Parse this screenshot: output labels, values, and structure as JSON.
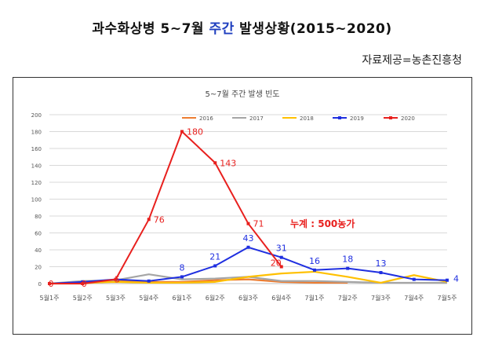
{
  "header": {
    "title_part1": "과수화상병  5~7월 ",
    "title_highlight": "주간",
    "title_part2": " 발생상황(2015~2020)",
    "source": "자료제공=농촌진흥청"
  },
  "chart_data": {
    "type": "line",
    "title": "5~7월 주간 발생 빈도",
    "categories": [
      "5월1주",
      "5월2주",
      "5월3주",
      "5월4주",
      "6월1주",
      "6월2주",
      "6월3주",
      "6월4주",
      "7월1주",
      "7월2주",
      "7월3주",
      "7월4주",
      "7월5주"
    ],
    "ylim": [
      0,
      200
    ],
    "yticks": [
      0,
      20,
      40,
      60,
      80,
      100,
      120,
      140,
      160,
      180,
      200
    ],
    "grid": true,
    "legend_position": "top",
    "series": [
      {
        "name": "2016",
        "color": "#ed7d31",
        "values": [
          0,
          0,
          3,
          2,
          2,
          4,
          5,
          2,
          1,
          1,
          null,
          null,
          null
        ]
      },
      {
        "name": "2017",
        "color": "#a5a5a5",
        "values": [
          0,
          3,
          4,
          11,
          5,
          6,
          8,
          3,
          3,
          2,
          1,
          1,
          1
        ]
      },
      {
        "name": "2018",
        "color": "#ffc000",
        "values": [
          0,
          1,
          2,
          1,
          1,
          2,
          8,
          12,
          14,
          8,
          1,
          10,
          2
        ]
      },
      {
        "name": "2019",
        "color": "#1f2fe0",
        "values": [
          0,
          2,
          5,
          3,
          8,
          21,
          43,
          31,
          16,
          18,
          13,
          5,
          4
        ],
        "labels": [
          null,
          null,
          null,
          null,
          "8",
          "21",
          "43",
          "31",
          "16",
          "18",
          "13",
          null,
          "4"
        ]
      },
      {
        "name": "2020",
        "color": "#e8201e",
        "values": [
          0,
          0,
          5,
          76,
          180,
          143,
          71,
          20,
          null,
          null,
          null,
          null,
          null
        ],
        "labels": [
          "0",
          "0",
          "5",
          "76",
          "180",
          "143",
          "71",
          "20",
          null,
          null,
          null,
          null,
          null
        ]
      }
    ],
    "annotation": "누계 : 500농가"
  }
}
